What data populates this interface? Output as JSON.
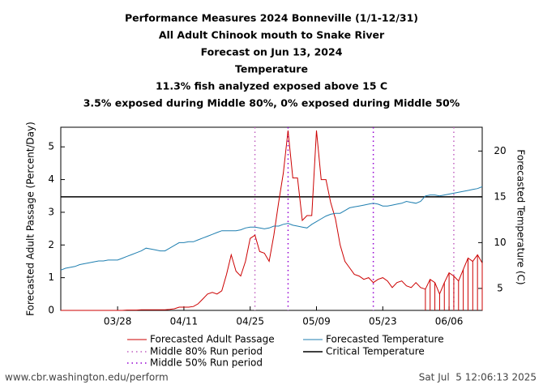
{
  "chart_data": {
    "type": "line",
    "title": [
      "Performance Measures 2024 Bonneville (1/1-12/31)",
      "All Adult Chinook mouth to Snake River",
      "Forecast on Jun 13, 2024",
      "Temperature",
      "11.3% fish analyzed exposed above 15 C",
      "3.5% exposed during Middle 80%, 0% exposed during Middle 50%"
    ],
    "ylabel": "Forecasted Adult Passage (Percent/Day)",
    "y2label": "Forecasted Temperature (C)",
    "x": [
      "03/16",
      "03/17",
      "03/18",
      "03/19",
      "03/20",
      "03/21",
      "03/22",
      "03/23",
      "03/24",
      "03/25",
      "03/26",
      "03/27",
      "03/28",
      "03/29",
      "03/30",
      "03/31",
      "04/01",
      "04/02",
      "04/03",
      "04/04",
      "04/05",
      "04/06",
      "04/07",
      "04/08",
      "04/09",
      "04/10",
      "04/11",
      "04/12",
      "04/13",
      "04/14",
      "04/15",
      "04/16",
      "04/17",
      "04/18",
      "04/19",
      "04/20",
      "04/21",
      "04/22",
      "04/23",
      "04/24",
      "04/25",
      "04/26",
      "04/27",
      "04/28",
      "04/29",
      "04/30",
      "05/01",
      "05/02",
      "05/03",
      "05/04",
      "05/05",
      "05/06",
      "05/07",
      "05/08",
      "05/09",
      "05/10",
      "05/11",
      "05/12",
      "05/13",
      "05/14",
      "05/15",
      "05/16",
      "05/17",
      "05/18",
      "05/19",
      "05/20",
      "05/21",
      "05/22",
      "05/23",
      "05/24",
      "05/25",
      "05/26",
      "05/27",
      "05/28",
      "05/29",
      "05/30",
      "05/31",
      "06/01",
      "06/02",
      "06/03",
      "06/04",
      "06/05",
      "06/06",
      "06/07",
      "06/08",
      "06/09",
      "06/10",
      "06/11",
      "06/12",
      "06/13"
    ],
    "series": [
      {
        "name": "Forecasted Adult Passage",
        "color": "#cc0000",
        "values": [
          0,
          0,
          0,
          0,
          0,
          0,
          0,
          0,
          0,
          0,
          0,
          0,
          0,
          0,
          0.01,
          0.01,
          0.01,
          0.02,
          0.02,
          0.02,
          0.02,
          0.02,
          0.02,
          0.03,
          0.05,
          0.1,
          0.1,
          0.1,
          0.12,
          0.2,
          0.35,
          0.5,
          0.55,
          0.5,
          0.6,
          1.1,
          1.7,
          1.2,
          1.05,
          1.5,
          2.2,
          2.3,
          1.8,
          1.75,
          1.5,
          2.3,
          3.3,
          4.2,
          5.5,
          4.05,
          4.05,
          2.75,
          2.9,
          2.9,
          5.5,
          4.0,
          4.0,
          3.3,
          2.8,
          2.0,
          1.5,
          1.3,
          1.1,
          1.05,
          0.95,
          1.0,
          0.85,
          0.95,
          1.0,
          0.9,
          0.7,
          0.85,
          0.9,
          0.75,
          0.7,
          0.85,
          0.7,
          0.65,
          0.95,
          0.85,
          0.5,
          0.85,
          1.15,
          1.05,
          0.9,
          1.25,
          1.6,
          1.5,
          1.7,
          1.45
        ]
      },
      {
        "name": "Forecasted Temperature",
        "color": "#1f7fb0",
        "axis": "y2",
        "values": [
          7.0,
          7.2,
          7.3,
          7.4,
          7.6,
          7.7,
          7.8,
          7.9,
          8.0,
          8.0,
          8.1,
          8.1,
          8.1,
          8.3,
          8.5,
          8.7,
          8.9,
          9.1,
          9.4,
          9.3,
          9.2,
          9.1,
          9.1,
          9.4,
          9.7,
          10.0,
          10.0,
          10.1,
          10.1,
          10.3,
          10.5,
          10.7,
          10.9,
          11.1,
          11.3,
          11.3,
          11.3,
          11.3,
          11.4,
          11.6,
          11.7,
          11.7,
          11.6,
          11.5,
          11.6,
          11.8,
          11.8,
          12.0,
          12.1,
          11.9,
          11.8,
          11.7,
          11.6,
          12.0,
          12.3,
          12.6,
          12.9,
          13.1,
          13.2,
          13.2,
          13.5,
          13.8,
          13.9,
          14.0,
          14.1,
          14.2,
          14.3,
          14.2,
          14.0,
          14.0,
          14.1,
          14.2,
          14.3,
          14.5,
          14.4,
          14.3,
          14.5,
          15.1,
          15.2,
          15.2,
          15.1,
          15.2,
          15.3,
          15.4,
          15.5,
          15.6,
          15.7,
          15.8,
          15.9,
          16.1
        ]
      }
    ],
    "critical": {
      "name": "Critical Temperature",
      "value": 15,
      "axis": "y2",
      "color": "#000000"
    },
    "run_periods": [
      {
        "name": "Middle 80% Run period",
        "color": "#c060c0",
        "x": [
          "04/26",
          "06/07"
        ]
      },
      {
        "name": "Middle 50% Run period",
        "color": "#9400d3",
        "x": [
          "05/03",
          "05/21"
        ]
      }
    ],
    "xlim": [
      "03/16",
      "06/13"
    ],
    "xticks": [
      "03/28",
      "04/11",
      "04/25",
      "05/09",
      "05/23",
      "06/06"
    ],
    "ylim": [
      0,
      5.6
    ],
    "yticks": [
      0,
      1,
      2,
      3,
      4,
      5
    ],
    "y2lim": [
      2.6,
      22.6
    ],
    "y2ticks": [
      5,
      10,
      15,
      20
    ]
  },
  "footer": {
    "left": "www.cbr.washington.edu/perform",
    "right": "Sat Jul  5 12:06:13 2025"
  }
}
